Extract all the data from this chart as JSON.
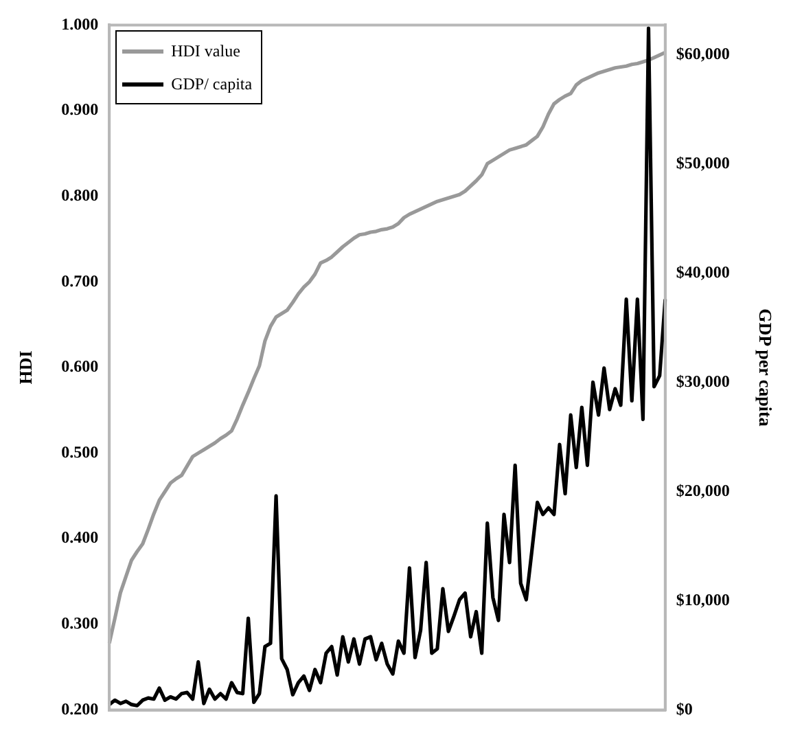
{
  "chart_data": {
    "type": "line",
    "xlabel": null,
    "ylabel": "HDI",
    "y2label": "GDP per capita",
    "legend": "top left",
    "marker": "none",
    "line_style": "solid",
    "categories": [
      null,
      null,
      null,
      null,
      null,
      null,
      null,
      null,
      null,
      null,
      null,
      null,
      null,
      null,
      null,
      null,
      null,
      null,
      null,
      null,
      null,
      null,
      null,
      null,
      null,
      null,
      null,
      null,
      null,
      null,
      null,
      null,
      null,
      null,
      null,
      null,
      null,
      null,
      null,
      null,
      null,
      null,
      null,
      null,
      null,
      null,
      null,
      null,
      null,
      null,
      null,
      null,
      null,
      null,
      null,
      null,
      null,
      null,
      null,
      null,
      null,
      null,
      null,
      null,
      null,
      null,
      null,
      null,
      null,
      null,
      null,
      null,
      null,
      null,
      null,
      null,
      null,
      null,
      null,
      null,
      null,
      null,
      null,
      null,
      null,
      null,
      null,
      null,
      null,
      null,
      null,
      null,
      null,
      null,
      null,
      null,
      null,
      null,
      null,
      null,
      null
    ],
    "series": [
      {
        "name": "HDI value",
        "color": "#999999",
        "values": [
          0.278,
          0.307,
          0.337,
          0.356,
          0.375,
          0.385,
          0.394,
          0.411,
          0.429,
          0.445,
          0.455,
          0.465,
          0.47,
          0.474,
          0.485,
          0.496,
          0.5,
          0.504,
          0.508,
          0.512,
          0.517,
          0.521,
          0.526,
          0.54,
          0.556,
          0.571,
          0.587,
          0.602,
          0.631,
          0.648,
          0.659,
          0.663,
          0.667,
          0.676,
          0.686,
          0.694,
          0.7,
          0.709,
          0.722,
          0.725,
          0.729,
          0.735,
          0.741,
          0.746,
          0.751,
          0.755,
          0.756,
          0.758,
          0.759,
          0.761,
          0.762,
          0.764,
          0.768,
          0.775,
          0.779,
          0.782,
          0.785,
          0.788,
          0.791,
          0.794,
          0.796,
          0.798,
          0.8,
          0.802,
          0.806,
          0.812,
          0.818,
          0.825,
          0.838,
          0.842,
          0.846,
          0.85,
          0.854,
          0.856,
          0.858,
          0.86,
          0.865,
          0.87,
          0.881,
          0.896,
          0.908,
          0.913,
          0.917,
          0.92,
          0.93,
          0.935,
          0.938,
          0.941,
          0.944,
          0.946,
          0.948,
          0.95,
          0.951,
          0.952,
          0.954,
          0.955,
          0.957,
          0.959,
          0.962,
          0.965,
          0.968
        ]
      },
      {
        "name": "GDP/ capita",
        "color": "#000000",
        "axis": "y2",
        "values": [
          500,
          900,
          600,
          800,
          500,
          400,
          900,
          1100,
          1000,
          2000,
          900,
          1200,
          1000,
          1500,
          1600,
          1000,
          4400,
          600,
          1900,
          1000,
          1500,
          1000,
          2500,
          1600,
          1500,
          8400,
          700,
          1500,
          5800,
          6100,
          19600,
          4700,
          3700,
          1400,
          2500,
          3100,
          1800,
          3700,
          2500,
          5200,
          5800,
          3200,
          6700,
          4400,
          6500,
          4200,
          6500,
          6700,
          4600,
          6100,
          4200,
          3300,
          6300,
          5200,
          13000,
          4800,
          7300,
          13500,
          5200,
          5600,
          11100,
          7200,
          8600,
          10100,
          10700,
          6700,
          9000,
          5200,
          17100,
          10300,
          8200,
          17900,
          13500,
          22400,
          11600,
          10100,
          14500,
          19000,
          17900,
          18500,
          17900,
          24300,
          19800,
          27000,
          22200,
          27700,
          22400,
          30000,
          27000,
          31300,
          27500,
          29400,
          27900,
          37600,
          28300,
          37600,
          26600,
          62400,
          29600,
          30600,
          37600
        ]
      }
    ],
    "ylim": [
      0.2,
      1.0
    ],
    "yticks": [
      {
        "value": 0.2,
        "label": "0.200"
      },
      {
        "value": 0.3,
        "label": "0.300"
      },
      {
        "value": 0.4,
        "label": "0.400"
      },
      {
        "value": 0.5,
        "label": "0.500"
      },
      {
        "value": 0.6,
        "label": "0.600"
      },
      {
        "value": 0.7,
        "label": "0.700"
      },
      {
        "value": 0.8,
        "label": "0.800"
      },
      {
        "value": 0.9,
        "label": "0.900"
      },
      {
        "value": 1.0,
        "label": "1.000"
      }
    ],
    "y2lim": [
      0,
      62700
    ],
    "y2ticks": [
      {
        "value": 0,
        "label": "$0"
      },
      {
        "value": 10000,
        "label": "$10,000"
      },
      {
        "value": 20000,
        "label": "$20,000"
      },
      {
        "value": 30000,
        "label": "$30,000"
      },
      {
        "value": 40000,
        "label": "$40,000"
      },
      {
        "value": 50000,
        "label": "$50,000"
      },
      {
        "value": 60000,
        "label": "$60,000"
      }
    ]
  }
}
